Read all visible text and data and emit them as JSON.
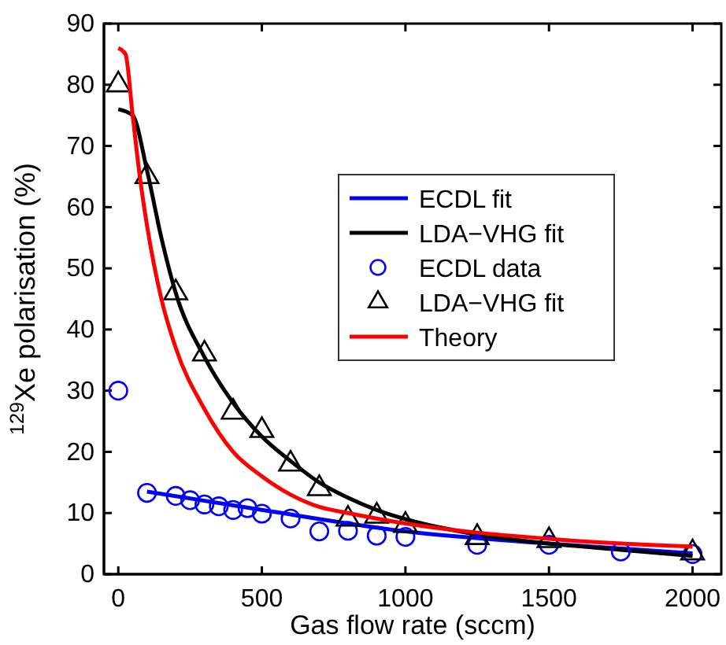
{
  "chart_data": {
    "type": "line",
    "xlabel": "Gas flow rate (sccm)",
    "ylabel": "$^{129}$Xe polarisation (%)",
    "xlim": [
      -50,
      2100
    ],
    "ylim": [
      0,
      90
    ],
    "xticks": [
      0,
      500,
      1000,
      1500,
      2000
    ],
    "yticks": [
      0,
      10,
      20,
      30,
      40,
      50,
      60,
      70,
      80,
      90
    ],
    "grid": false,
    "legend": "right",
    "series": [
      {
        "name": "ECDL fit",
        "color": "#0000ff",
        "marker": "none",
        "line_style": "solid",
        "x": [
          100,
          500,
          1000,
          1500,
          2000
        ],
        "values": [
          13.5,
          10.5,
          7,
          5,
          3.4
        ]
      },
      {
        "name": "LDA−VHG fit",
        "color": "#000000",
        "marker": "none",
        "line_style": "solid",
        "x": [
          0,
          50,
          100,
          150,
          200,
          300,
          400,
          500,
          600,
          700,
          800,
          900,
          1000,
          1250,
          1500,
          1750,
          2000
        ],
        "values": [
          76,
          75,
          66,
          55,
          46,
          35.5,
          28,
          22.5,
          18.5,
          15,
          12.5,
          10.5,
          9,
          6.5,
          5,
          4,
          3
        ]
      },
      {
        "name": "ECDL data",
        "type": "scatter",
        "color": "#0000ff",
        "marker": "circle",
        "x": [
          0,
          100,
          200,
          250,
          300,
          350,
          400,
          450,
          500,
          600,
          700,
          800,
          900,
          1000,
          1250,
          1500,
          1750,
          2000
        ],
        "values": [
          30,
          13.3,
          12.8,
          12.1,
          11.4,
          11.1,
          10.5,
          10.8,
          9.9,
          9.1,
          7,
          7.1,
          6.3,
          6.1,
          4.8,
          4.8,
          3.7,
          3.3
        ]
      },
      {
        "name": "LDA−VHG fit",
        "type": "scatter",
        "color": "#000000",
        "marker": "triangle",
        "x": [
          0,
          100,
          200,
          300,
          400,
          500,
          600,
          700,
          800,
          900,
          1000,
          1250,
          1500,
          2000
        ],
        "values": [
          80,
          65,
          46,
          36,
          26.5,
          23.5,
          18,
          14,
          9,
          9.5,
          8,
          6,
          5.5,
          3.5
        ]
      },
      {
        "name": "Theory",
        "color": "#ff0000",
        "marker": "none",
        "line_style": "solid",
        "x": [
          0,
          25,
          50,
          75,
          100,
          150,
          200,
          300,
          400,
          500,
          600,
          700,
          800,
          1000,
          1250,
          1500,
          1750,
          2000
        ],
        "values": [
          86,
          85,
          75,
          65,
          57,
          45,
          37,
          27,
          20,
          16,
          13,
          11,
          10,
          8.3,
          6.8,
          5.8,
          5,
          4.5
        ]
      }
    ]
  }
}
